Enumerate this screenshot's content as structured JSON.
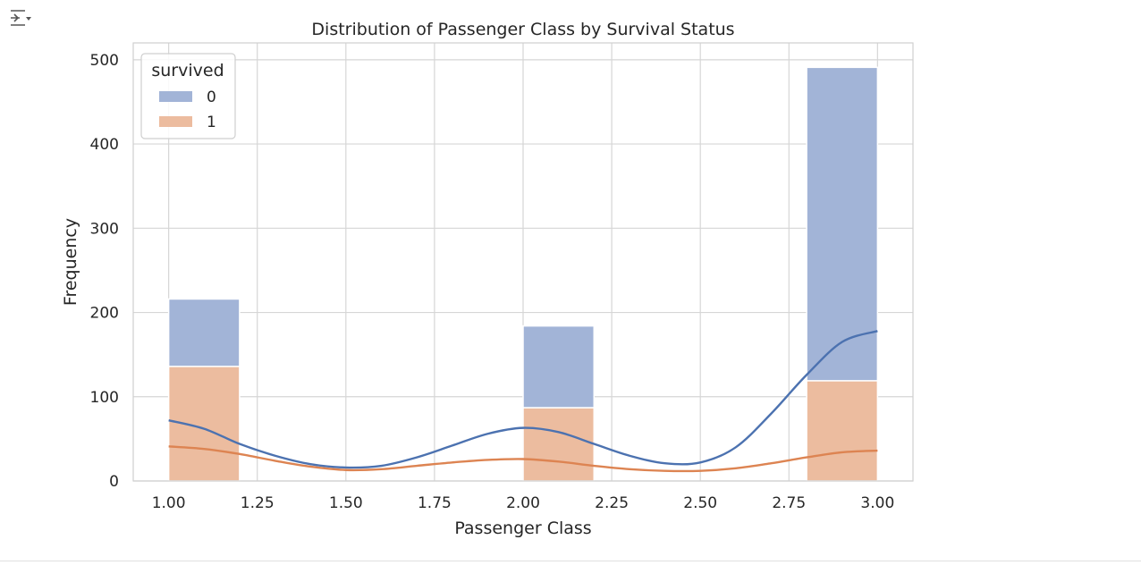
{
  "toolbar": {
    "output_icon": "output-toggle-icon"
  },
  "chart_data": {
    "type": "histogram",
    "title": "Distribution of Passenger Class by Survival Status",
    "xlabel": "Passenger Class",
    "ylabel": "Frequency",
    "xlim": [
      0.9,
      3.1
    ],
    "ylim": [
      0,
      520
    ],
    "x_ticks": [
      "1.00",
      "1.25",
      "1.50",
      "1.75",
      "2.00",
      "2.25",
      "2.50",
      "2.75",
      "3.00"
    ],
    "x_tick_values": [
      1.0,
      1.25,
      1.5,
      1.75,
      2.0,
      2.25,
      2.5,
      2.75,
      3.0
    ],
    "y_ticks": [
      "0",
      "100",
      "200",
      "300",
      "400",
      "500"
    ],
    "y_tick_values": [
      0,
      100,
      200,
      300,
      400,
      500
    ],
    "grid": true,
    "stacked": true,
    "legend": {
      "title": "survived",
      "placement": "top-left"
    },
    "bins": [
      {
        "x0": 1.0,
        "x1": 1.2,
        "counts": {
          "0": 80,
          "1": 136
        }
      },
      {
        "x0": 2.0,
        "x1": 2.2,
        "counts": {
          "0": 97,
          "1": 87
        }
      },
      {
        "x0": 2.8,
        "x1": 3.0,
        "counts": {
          "0": 372,
          "1": 119
        }
      }
    ],
    "series": [
      {
        "name": "0",
        "color": "#4c72b0",
        "bar_color": "#a2b4d7",
        "kde": [
          [
            1.0,
            72
          ],
          [
            1.1,
            62
          ],
          [
            1.2,
            44
          ],
          [
            1.3,
            30
          ],
          [
            1.4,
            20
          ],
          [
            1.5,
            16
          ],
          [
            1.6,
            18
          ],
          [
            1.7,
            28
          ],
          [
            1.8,
            42
          ],
          [
            1.9,
            56
          ],
          [
            2.0,
            63
          ],
          [
            2.1,
            58
          ],
          [
            2.2,
            44
          ],
          [
            2.3,
            30
          ],
          [
            2.4,
            21
          ],
          [
            2.5,
            22
          ],
          [
            2.6,
            40
          ],
          [
            2.7,
            80
          ],
          [
            2.8,
            126
          ],
          [
            2.9,
            165
          ],
          [
            3.0,
            178
          ]
        ]
      },
      {
        "name": "1",
        "color": "#dd8452",
        "bar_color": "#ecbc9f",
        "kde": [
          [
            1.0,
            41
          ],
          [
            1.1,
            38
          ],
          [
            1.2,
            32
          ],
          [
            1.3,
            24
          ],
          [
            1.4,
            17
          ],
          [
            1.5,
            13
          ],
          [
            1.6,
            14
          ],
          [
            1.7,
            18
          ],
          [
            1.8,
            22
          ],
          [
            1.9,
            25
          ],
          [
            2.0,
            26
          ],
          [
            2.1,
            23
          ],
          [
            2.2,
            18
          ],
          [
            2.3,
            14
          ],
          [
            2.4,
            12
          ],
          [
            2.5,
            12
          ],
          [
            2.6,
            15
          ],
          [
            2.7,
            21
          ],
          [
            2.8,
            28
          ],
          [
            2.9,
            34
          ],
          [
            3.0,
            36
          ]
        ]
      }
    ]
  }
}
